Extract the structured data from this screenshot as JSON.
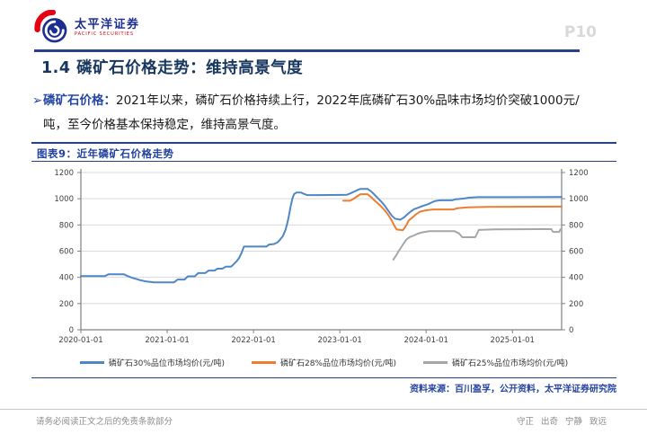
{
  "header": {
    "logo_cn": "太平洋证券",
    "logo_en": "PACIFIC SECURITIES",
    "page_number": "P10"
  },
  "page_title": "1.4 磷矿石价格走势：维持高景气度",
  "bullet": {
    "marker": "➢",
    "lead": "磷矿石价格：",
    "line1": "2021年以来，磷矿石价格持续上行，2022年底磷矿石30%品味市场均价突破1000元/",
    "line2": "吨，至今价格基本保持稳定，维持高景气度。"
  },
  "figure": {
    "caption": "图表9：近年磷矿石价格走势",
    "source": "资料来源：百川盈孚，公开资料，太平洋证券研究院"
  },
  "footer": {
    "left": "请务必阅读正文之后的免责条款部分",
    "right": "守正 出奇 宁静 致远"
  },
  "accent_colors": {
    "header_rule": "#26428b",
    "title_text": "#17375e",
    "blue_text": "#2547a5",
    "page_number_gray": "#d9d9d9",
    "logo_red": "#e60012",
    "logo_blue": "#1d2f8e"
  },
  "chart_data": {
    "type": "line",
    "title": "近年磷矿石价格走势",
    "xlabel": "",
    "ylabel": "元/吨",
    "x_range": [
      2020.0,
      2025.57
    ],
    "ylim": [
      0,
      1200
    ],
    "yticks": [
      0,
      200,
      400,
      600,
      800,
      1000,
      1200
    ],
    "dual_y_axis": true,
    "grid": "horizontal",
    "legend_position": "bottom",
    "colors": {
      "grid": "#d9d9d9",
      "axis": "#808080",
      "tick_text": "#404040"
    },
    "xticks": [
      {
        "value": 2020.0,
        "label": "2020-01-01"
      },
      {
        "value": 2021.0,
        "label": "2021-01-01"
      },
      {
        "value": 2022.0,
        "label": "2022-01-01"
      },
      {
        "value": 2023.0,
        "label": "2023-01-01"
      },
      {
        "value": 2024.0,
        "label": "2024-01-01"
      },
      {
        "value": 2025.0,
        "label": "2025-01-01"
      }
    ],
    "series": [
      {
        "name": "磷矿石30%品位市场均价(元/吨)",
        "color": "#4f86c6",
        "points": [
          [
            2020.0,
            410
          ],
          [
            2020.28,
            410
          ],
          [
            2020.32,
            423
          ],
          [
            2020.5,
            423
          ],
          [
            2020.54,
            410
          ],
          [
            2020.6,
            396
          ],
          [
            2020.68,
            380
          ],
          [
            2020.76,
            368
          ],
          [
            2020.85,
            362
          ],
          [
            2021.08,
            362
          ],
          [
            2021.12,
            383
          ],
          [
            2021.2,
            383
          ],
          [
            2021.24,
            408
          ],
          [
            2021.32,
            408
          ],
          [
            2021.36,
            433
          ],
          [
            2021.44,
            433
          ],
          [
            2021.48,
            452
          ],
          [
            2021.55,
            452
          ],
          [
            2021.58,
            466
          ],
          [
            2021.64,
            466
          ],
          [
            2021.68,
            482
          ],
          [
            2021.74,
            482
          ],
          [
            2021.77,
            500
          ],
          [
            2021.8,
            520
          ],
          [
            2021.83,
            545
          ],
          [
            2021.86,
            585
          ],
          [
            2021.89,
            635
          ],
          [
            2022.15,
            635
          ],
          [
            2022.18,
            650
          ],
          [
            2022.24,
            655
          ],
          [
            2022.28,
            668
          ],
          [
            2022.31,
            690
          ],
          [
            2022.34,
            715
          ],
          [
            2022.37,
            760
          ],
          [
            2022.39,
            810
          ],
          [
            2022.41,
            870
          ],
          [
            2022.43,
            940
          ],
          [
            2022.45,
            1000
          ],
          [
            2022.47,
            1035
          ],
          [
            2022.5,
            1048
          ],
          [
            2022.55,
            1048
          ],
          [
            2022.58,
            1038
          ],
          [
            2022.62,
            1028
          ],
          [
            2022.75,
            1028
          ],
          [
            2023.08,
            1030
          ],
          [
            2023.12,
            1040
          ],
          [
            2023.16,
            1052
          ],
          [
            2023.2,
            1065
          ],
          [
            2023.24,
            1075
          ],
          [
            2023.32,
            1075
          ],
          [
            2023.36,
            1058
          ],
          [
            2023.4,
            1032
          ],
          [
            2023.44,
            1005
          ],
          [
            2023.48,
            978
          ],
          [
            2023.52,
            948
          ],
          [
            2023.56,
            910
          ],
          [
            2023.6,
            872
          ],
          [
            2023.64,
            848
          ],
          [
            2023.7,
            840
          ],
          [
            2023.74,
            856
          ],
          [
            2023.78,
            880
          ],
          [
            2023.82,
            902
          ],
          [
            2023.86,
            920
          ],
          [
            2023.91,
            932
          ],
          [
            2023.96,
            945
          ],
          [
            2024.02,
            958
          ],
          [
            2024.06,
            970
          ],
          [
            2024.1,
            982
          ],
          [
            2024.16,
            988
          ],
          [
            2024.3,
            988
          ],
          [
            2024.34,
            996
          ],
          [
            2024.44,
            1002
          ],
          [
            2024.5,
            1008
          ],
          [
            2024.6,
            1012
          ],
          [
            2025.0,
            1012
          ],
          [
            2025.57,
            1013
          ]
        ]
      },
      {
        "name": "磷矿石28%品位市场均价(元/吨)",
        "color": "#ED7D31",
        "points": [
          [
            2023.04,
            985
          ],
          [
            2023.12,
            985
          ],
          [
            2023.16,
            1000
          ],
          [
            2023.2,
            1018
          ],
          [
            2023.24,
            1035
          ],
          [
            2023.32,
            1035
          ],
          [
            2023.36,
            1015
          ],
          [
            2023.4,
            988
          ],
          [
            2023.44,
            965
          ],
          [
            2023.48,
            940
          ],
          [
            2023.52,
            912
          ],
          [
            2023.56,
            878
          ],
          [
            2023.6,
            835
          ],
          [
            2023.63,
            795
          ],
          [
            2023.66,
            765
          ],
          [
            2023.73,
            760
          ],
          [
            2023.76,
            785
          ],
          [
            2023.8,
            835
          ],
          [
            2023.84,
            856
          ],
          [
            2023.88,
            880
          ],
          [
            2023.93,
            902
          ],
          [
            2024.0,
            912
          ],
          [
            2024.08,
            918
          ],
          [
            2024.32,
            918
          ],
          [
            2024.36,
            928
          ],
          [
            2024.48,
            934
          ],
          [
            2024.7,
            938
          ],
          [
            2025.57,
            940
          ]
        ]
      },
      {
        "name": "磷矿石25%品位市场均价(元/吨)",
        "color": "#A6A6A6",
        "points": [
          [
            2023.62,
            535
          ],
          [
            2023.65,
            565
          ],
          [
            2023.68,
            598
          ],
          [
            2023.71,
            628
          ],
          [
            2023.74,
            658
          ],
          [
            2023.77,
            688
          ],
          [
            2023.81,
            708
          ],
          [
            2023.86,
            720
          ],
          [
            2023.9,
            733
          ],
          [
            2023.96,
            744
          ],
          [
            2024.04,
            752
          ],
          [
            2024.33,
            752
          ],
          [
            2024.38,
            736
          ],
          [
            2024.42,
            706
          ],
          [
            2024.57,
            706
          ],
          [
            2024.61,
            762
          ],
          [
            2024.8,
            766
          ],
          [
            2025.3,
            768
          ],
          [
            2025.45,
            768
          ],
          [
            2025.47,
            747
          ],
          [
            2025.54,
            747
          ],
          [
            2025.56,
            768
          ],
          [
            2025.57,
            768
          ]
        ]
      }
    ]
  }
}
